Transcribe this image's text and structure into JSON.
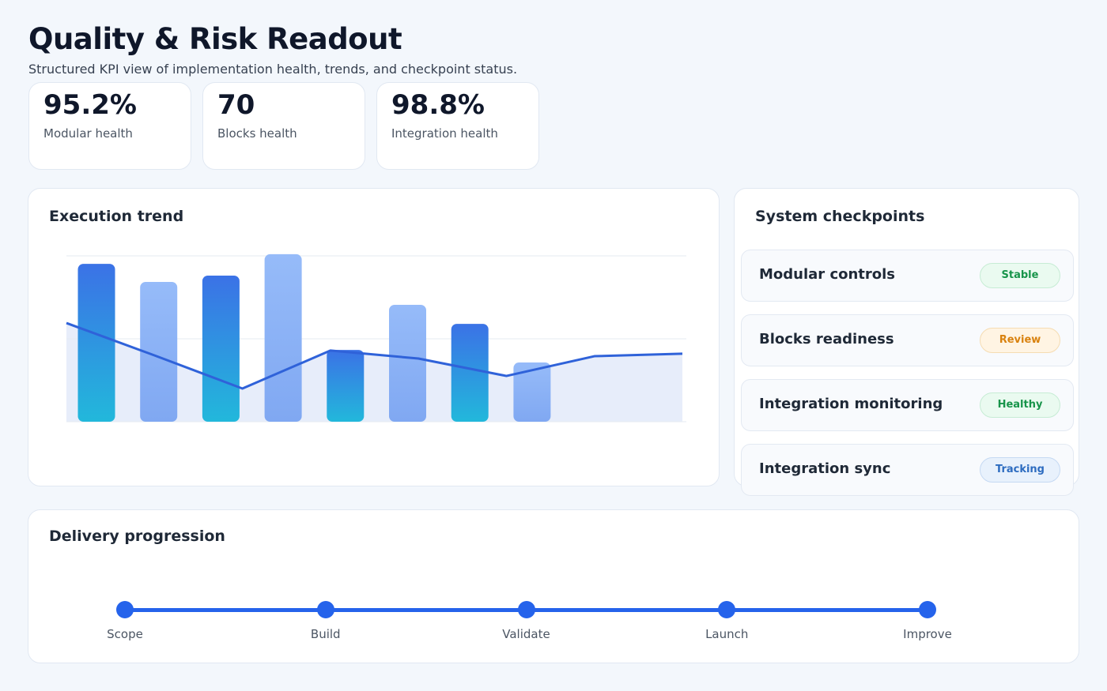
{
  "header": {
    "title": "Quality & Risk Readout",
    "subtitle": "Structured KPI view of implementation health, trends, and checkpoint status."
  },
  "kpis": [
    {
      "value": "95.2%",
      "label": "Modular health"
    },
    {
      "value": "70",
      "label": "Blocks health"
    },
    {
      "value": "98.8%",
      "label": "Integration health"
    }
  ],
  "chart_data": {
    "type": "bar-line",
    "title": "Execution trend",
    "categories": [
      null,
      null,
      null,
      null,
      null,
      null,
      null,
      null
    ],
    "series": [
      {
        "type": "bar",
        "colors": [
          "#3a78e6",
          "#93b7f8",
          "#3a78e6",
          "#93b7f8",
          "#3a78e6",
          "#93b7f8",
          "#3a78e6",
          "#93b7f8"
        ],
        "values": [
          95.2,
          84.3,
          88.1,
          101,
          43.3,
          70.5,
          59,
          35.7
        ]
      },
      {
        "type": "line",
        "color": "#2f62d9",
        "values": [
          59.5,
          40,
          20,
          42.9,
          38.1,
          27.6,
          39.5,
          41
        ]
      }
    ],
    "ylim": [
      0,
      100
    ],
    "yticks": [
      0,
      50,
      100
    ],
    "grid": true
  },
  "checkpoints": {
    "title": "System checkpoints",
    "items": [
      {
        "label": "Modular controls",
        "status": "Stable"
      },
      {
        "label": "Blocks readiness",
        "status": "Review"
      },
      {
        "label": "Integration monitoring",
        "status": "Healthy"
      },
      {
        "label": "Integration sync",
        "status": "Tracking"
      }
    ]
  },
  "delivery": {
    "title": "Delivery progression",
    "stages": [
      "Scope",
      "Build",
      "Validate",
      "Launch",
      "Improve"
    ]
  }
}
